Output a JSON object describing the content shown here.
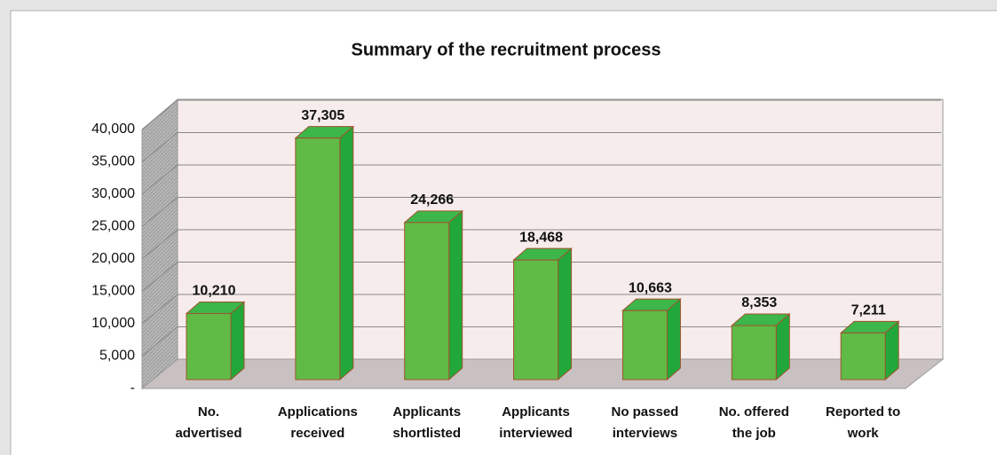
{
  "chart_data": {
    "type": "bar3d",
    "title": "Summary of the recruitment process",
    "categories": [
      "No.\nadvertised",
      "Applications\nreceived",
      "Applicants\nshortlisted",
      "Applicants\ninterviewed",
      "No passed\ninterviews",
      "No. offered\nthe job",
      "Reported to\nwork"
    ],
    "values": [
      10210,
      37305,
      24266,
      18468,
      10663,
      8353,
      7211
    ],
    "value_labels": [
      "10,210",
      "37,305",
      "24,266",
      "18,468",
      "10,663",
      "8,353",
      "7,211"
    ],
    "color": "#5fbb46",
    "ylim": [
      0,
      40000
    ],
    "yticks": [
      {
        "value": 0,
        "label": "-"
      },
      {
        "value": 5000,
        "label": "5,000"
      },
      {
        "value": 10000,
        "label": "10,000"
      },
      {
        "value": 15000,
        "label": "15,000"
      },
      {
        "value": 20000,
        "label": "20,000"
      },
      {
        "value": 25000,
        "label": "25,000"
      },
      {
        "value": 30000,
        "label": "30,000"
      },
      {
        "value": 35000,
        "label": "35,000"
      },
      {
        "value": 40000,
        "label": "40,000"
      }
    ],
    "grid": true
  }
}
